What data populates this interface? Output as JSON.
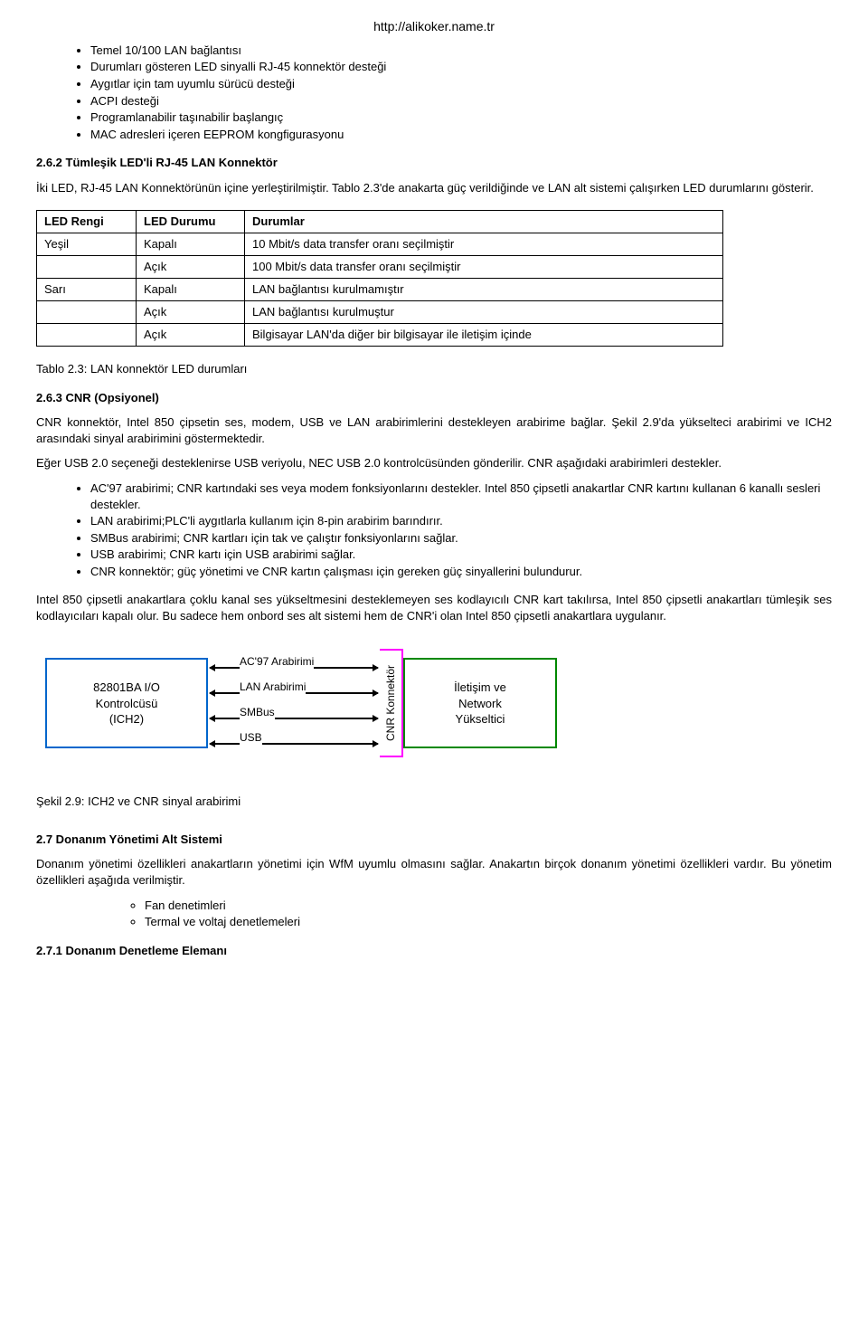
{
  "header_url": "http://alikoker.name.tr",
  "top_bullets": [
    "Temel 10/100 LAN bağlantısı",
    "Durumları gösteren LED sinyalli RJ-45 konnektör desteği",
    "Aygıtlar için tam uyumlu sürücü desteği",
    "ACPI desteği",
    "Programlanabilir taşınabilir başlangıç",
    "MAC adresleri içeren EEPROM kongfigurasyonu"
  ],
  "heading_262": "2.6.2 Tümleşik LED'li RJ-45 LAN Konnektör",
  "para_262": "İki LED, RJ-45 LAN Konnektörünün içine yerleştirilmiştir. Tablo 2.3'de anakarta güç verildiğinde ve LAN alt sistemi çalışırken LED durumlarını gösterir.",
  "led_table": {
    "headers": [
      "LED Rengi",
      "LED Durumu",
      "Durumlar"
    ],
    "rows": [
      [
        "Yeşil",
        "Kapalı",
        "10 Mbit/s data transfer oranı seçilmiştir"
      ],
      [
        "",
        "Açık",
        "100 Mbit/s data transfer oranı seçilmiştir"
      ],
      [
        "Sarı",
        "Kapalı",
        "LAN bağlantısı kurulmamıştır"
      ],
      [
        "",
        "Açık",
        "LAN bağlantısı kurulmuştur"
      ],
      [
        "",
        "Açık",
        "Bilgisayar LAN'da diğer bir bilgisayar ile iletişim içinde"
      ]
    ],
    "col_widths": [
      "110px",
      "120px",
      "auto"
    ]
  },
  "caption_table23": "Tablo 2.3: LAN konnektör LED durumları",
  "heading_263": "2.6.3 CNR (Opsiyonel)",
  "para_263a": "CNR konnektör, Intel 850 çipsetin ses, modem, USB ve LAN arabirimlerini destekleyen arabirime bağlar. Şekil 2.9'da yükselteci arabirimi ve ICH2 arasındaki sinyal arabirimini göstermektedir.",
  "para_263b": "Eğer USB 2.0 seçeneği desteklenirse USB veriyolu, NEC USB 2.0 kontrolcüsünden gönderilir. CNR aşağıdaki arabirimleri destekler.",
  "cnr_bullets": [
    "AC'97 arabirimi; CNR kartındaki ses veya modem fonksiyonlarını destekler. Intel 850 çipsetli anakartlar CNR kartını kullanan 6 kanallı sesleri destekler.",
    "LAN arabirimi;PLC'li aygıtlarla kullanım için 8-pin arabirim barındırır.",
    "SMBus arabirimi; CNR kartları için tak ve çalıştır fonksiyonlarını sağlar.",
    "USB arabirimi; CNR kartı için USB arabirimi sağlar.",
    "CNR konnektör; güç yönetimi ve CNR kartın çalışması için gereken güç sinyallerini bulundurur."
  ],
  "para_263c": "Intel 850 çipsetli anakartlara çoklu kanal ses yükseltmesini desteklemeyen ses kodlayıcılı CNR kart takılırsa, Intel 850 çipsetli anakartları tümleşik ses kodlayıcıları kapalı olur. Bu sadece hem onbord ses alt sistemi hem de CNR'i olan Intel 850 çipsetli anakartlara uygulanır.",
  "diagram": {
    "box1_text": "82801BA I/O\nKontrolcüsü\n(ICH2)",
    "box1_border": "#0066cc",
    "box2_text": "İletişim ve\nNetwork\nYükseltici",
    "box2_border": "#008800",
    "cnr_label": "CNR Konnektör",
    "cnr_color": "#ff00ff",
    "arrows": [
      "AC'97 Arabirimi",
      "LAN Arabirimi",
      "SMBus",
      "USB"
    ]
  },
  "caption_sekil29": "Şekil 2.9: ICH2 ve CNR sinyal arabirimi",
  "heading_27": "2.7 Donanım Yönetimi Alt Sistemi",
  "para_27": "Donanım yönetimi özellikleri anakartların yönetimi için WfM uyumlu olmasını sağlar. Anakartın birçok donanım yönetimi özellikleri vardır. Bu yönetim özellikleri aşağıda verilmiştir.",
  "sub_bullets_27": [
    "Fan denetimleri",
    "Termal ve voltaj denetlemeleri"
  ],
  "heading_271": "2.7.1 Donanım Denetleme Elemanı"
}
